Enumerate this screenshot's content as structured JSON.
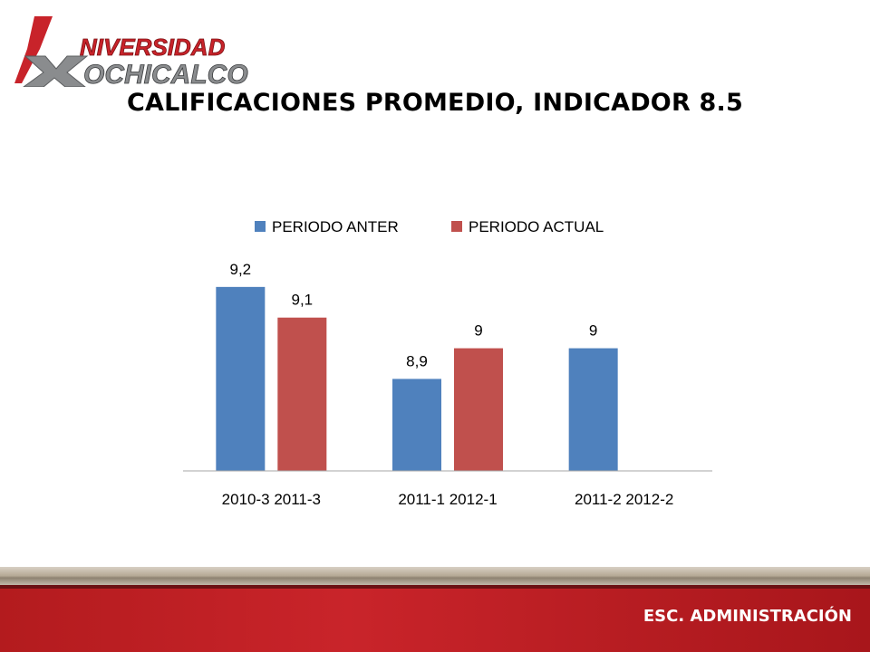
{
  "logo": {
    "line1": "NIVERSIDAD",
    "line2": "OCHICALCO"
  },
  "title": "CALIFICACIONES PROMEDIO, INDICADOR 8.5",
  "footer": {
    "label": "ESC. ADMINISTRACIÓN"
  },
  "colors": {
    "series1": "#4f81bd",
    "series2": "#c0504d",
    "footer_red": "#c0232a"
  },
  "chart_data": {
    "type": "bar",
    "categories": [
      "2010-3 2011-3",
      "2011-1 2012-1",
      "2011-2 2012-2"
    ],
    "series": [
      {
        "name": "PERIODO ANTER",
        "values": [
          9.2,
          8.9,
          9.0
        ],
        "labels": [
          "9,2",
          "8,9",
          "9"
        ]
      },
      {
        "name": "PERIODO ACTUAL",
        "values": [
          9.1,
          9.0,
          null
        ],
        "labels": [
          "9,1",
          "9",
          ""
        ]
      }
    ],
    "ylim": [
      8.6,
      9.3
    ],
    "grid": false,
    "legend": "top"
  }
}
